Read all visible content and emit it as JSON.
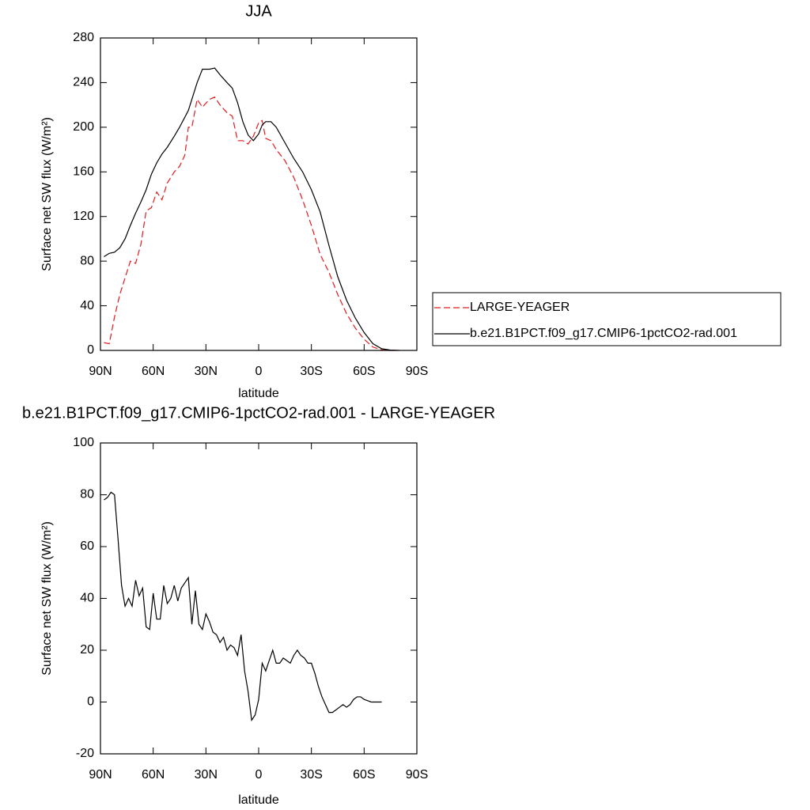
{
  "chart_data": [
    {
      "type": "line",
      "title": "JJA",
      "xlabel": "latitude",
      "ylabel": "Surface net SW flux (W/m²)",
      "xlim": [
        90,
        -90
      ],
      "ylim": [
        0,
        280
      ],
      "xticks": [
        {
          "value": 90,
          "label": "90N"
        },
        {
          "value": 60,
          "label": "60N"
        },
        {
          "value": 30,
          "label": "30N"
        },
        0,
        {
          "value": -30,
          "label": "30S"
        },
        {
          "value": -60,
          "label": "60S"
        },
        {
          "value": -90,
          "label": "90S"
        }
      ],
      "yticks": [
        0,
        40,
        80,
        120,
        160,
        200,
        240,
        280
      ],
      "legend": true,
      "x": [
        88,
        85,
        82,
        79,
        76,
        73,
        70,
        67,
        64,
        61,
        58,
        55,
        52,
        48,
        45,
        42,
        40,
        38,
        35,
        32,
        28,
        25,
        22,
        18,
        15,
        12,
        9,
        6,
        3,
        0,
        -2,
        -4,
        -7,
        -10,
        -15,
        -20,
        -25,
        -30,
        -35,
        -40,
        -45,
        -50,
        -55,
        -60,
        -65,
        -70,
        -75,
        -80
      ],
      "series": [
        {
          "name": "LARGE-YEAGER",
          "color": "#e41a1c",
          "style": "dashed",
          "values": [
            7,
            6,
            30,
            50,
            65,
            80,
            78,
            95,
            125,
            128,
            142,
            135,
            150,
            160,
            165,
            175,
            200,
            200,
            225,
            218,
            225,
            227,
            220,
            213,
            210,
            188,
            188,
            185,
            192,
            204,
            206,
            190,
            188,
            180,
            170,
            155,
            135,
            112,
            86,
            70,
            50,
            33,
            20,
            10,
            3,
            0.5,
            0,
            0
          ]
        },
        {
          "name": "b.e21.B1PCT.f09_g17.CMIP6-1pctCO2-rad.001",
          "color": "#000000",
          "style": "solid",
          "values": [
            84,
            87,
            88,
            92,
            100,
            112,
            123,
            133,
            144,
            158,
            168,
            176,
            182,
            192,
            200,
            209,
            215,
            225,
            240,
            252,
            252,
            253,
            247,
            240,
            235,
            222,
            205,
            193,
            188,
            194,
            202,
            205,
            205,
            200,
            186,
            172,
            160,
            144,
            124,
            94,
            66,
            45,
            29,
            16,
            6,
            1.5,
            0.3,
            0
          ]
        }
      ]
    },
    {
      "type": "line",
      "title": "b.e21.B1PCT.f09_g17.CMIP6-1pctCO2-rad.001 - LARGE-YEAGER",
      "xlabel": "latitude",
      "ylabel": "Surface net SW flux (W/m²)",
      "xlim": [
        90,
        -90
      ],
      "ylim": [
        -20,
        100
      ],
      "xticks": [
        {
          "value": 90,
          "label": "90N"
        },
        {
          "value": 60,
          "label": "60N"
        },
        {
          "value": 30,
          "label": "30N"
        },
        0,
        {
          "value": -30,
          "label": "30S"
        },
        {
          "value": -60,
          "label": "60S"
        },
        {
          "value": -90,
          "label": "90S"
        }
      ],
      "yticks": [
        -20,
        0,
        20,
        40,
        60,
        80,
        100
      ],
      "legend": false,
      "x": [
        88,
        86,
        84,
        82,
        80,
        78,
        76,
        74,
        72,
        70,
        68,
        66,
        64,
        62,
        60,
        58,
        56,
        54,
        52,
        50,
        48,
        46,
        44,
        42,
        40,
        38,
        36,
        34,
        32,
        30,
        28,
        26,
        24,
        22,
        20,
        18,
        16,
        14,
        12,
        10,
        8,
        6,
        4,
        2,
        0,
        -2,
        -4,
        -6,
        -8,
        -10,
        -12,
        -14,
        -16,
        -18,
        -20,
        -22,
        -24,
        -26,
        -28,
        -30,
        -32,
        -34,
        -36,
        -38,
        -40,
        -42,
        -44,
        -46,
        -48,
        -50,
        -52,
        -54,
        -56,
        -58,
        -60,
        -62,
        -64,
        -66,
        -68,
        -70
      ],
      "series": [
        {
          "color": "#000000",
          "style": "solid",
          "values": [
            78,
            79,
            81,
            80,
            63,
            45,
            37,
            40,
            37,
            47,
            41,
            44,
            29,
            28,
            42,
            32,
            32,
            45,
            38,
            40,
            45,
            39,
            44,
            46,
            48,
            30,
            43,
            30,
            28,
            34,
            31,
            27,
            26,
            23,
            25,
            20,
            22,
            21,
            18,
            26,
            12,
            4,
            -7,
            -5,
            1,
            15,
            12,
            16,
            20,
            15,
            15,
            17,
            16,
            15,
            18,
            20,
            18,
            17,
            15,
            15,
            11,
            6,
            2,
            -1,
            -4,
            -4,
            -3,
            -2,
            -1,
            -2,
            -1,
            1,
            2,
            2,
            1,
            0.5,
            0,
            0,
            0,
            0
          ]
        }
      ]
    }
  ]
}
